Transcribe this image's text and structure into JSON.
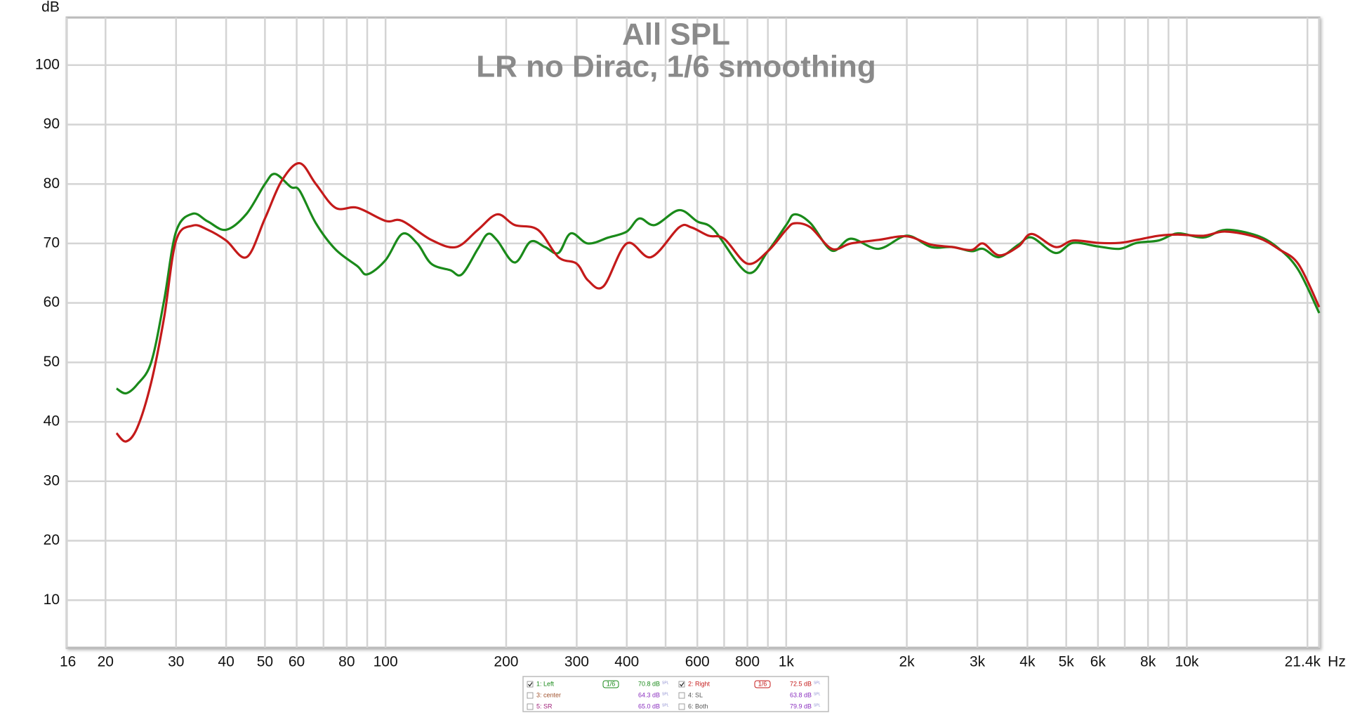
{
  "chart_data": {
    "type": "line",
    "title": "All SPL",
    "subtitle": "LR no Dirac, 1/6 smoothing",
    "y_axis_label": "dB",
    "x_axis_label": "Hz",
    "x_scale": "log",
    "grid": true,
    "xlim": [
      16,
      21400
    ],
    "ylim": [
      2,
      108
    ],
    "yticks": [
      10,
      20,
      30,
      40,
      50,
      60,
      70,
      80,
      90,
      100
    ],
    "xticks": [
      16,
      20,
      30,
      40,
      50,
      60,
      80,
      100,
      200,
      300,
      400,
      600,
      800,
      {
        "value": 1000,
        "label": "1k"
      },
      {
        "value": 2000,
        "label": "2k"
      },
      {
        "value": 3000,
        "label": "3k"
      },
      {
        "value": 4000,
        "label": "4k"
      },
      {
        "value": 5000,
        "label": "5k"
      },
      {
        "value": 6000,
        "label": "6k"
      },
      {
        "value": 8000,
        "label": "8k"
      },
      {
        "value": 10000,
        "label": "10k"
      },
      {
        "value": 21400,
        "label": "21.4k"
      }
    ],
    "x_minor_ticks": [
      70,
      90,
      500,
      700,
      900,
      7000,
      9000,
      20000
    ],
    "series": [
      {
        "name": "1: Left",
        "color": "#1a8a1a",
        "x": [
          21.3,
          22.5,
          24,
          26,
          28,
          30,
          33,
          36,
          40,
          45,
          50,
          53,
          58,
          61,
          67,
          75,
          85,
          90,
          100,
          110,
          120,
          130,
          145,
          155,
          170,
          180,
          190,
          210,
          230,
          250,
          270,
          290,
          320,
          360,
          400,
          430,
          470,
          540,
          600,
          660,
          800,
          900,
          1000,
          1050,
          1150,
          1300,
          1450,
          1700,
          2000,
          2300,
          2600,
          2900,
          3100,
          3400,
          3800,
          4100,
          4700,
          5200,
          6000,
          6800,
          7500,
          8500,
          9500,
          11000,
          12500,
          15000,
          17000,
          19000,
          21400
        ],
        "values": [
          45.6,
          44.8,
          46.3,
          50,
          60.4,
          72,
          75,
          73.7,
          72.3,
          75,
          80,
          81.7,
          79.5,
          78.9,
          73.4,
          69,
          66.2,
          64.8,
          67.2,
          71.6,
          70,
          66.6,
          65.5,
          64.8,
          69.1,
          71.6,
          70.5,
          66.8,
          70.3,
          69.4,
          68.4,
          71.7,
          70,
          71,
          72,
          74.2,
          73.1,
          75.6,
          73.7,
          72.3,
          65.1,
          68.7,
          73.1,
          74.9,
          73.4,
          68.8,
          70.8,
          69.1,
          71.3,
          69.4,
          69.4,
          68.7,
          69.1,
          67.7,
          69.8,
          71,
          68.4,
          70.1,
          69.5,
          69.1,
          70.1,
          70.5,
          71.7,
          71,
          72.3,
          71.3,
          69.1,
          65.5,
          58.3
        ]
      },
      {
        "name": "2: Right",
        "color": "#c41a1a",
        "x": [
          21.3,
          22.5,
          24,
          26,
          28,
          30,
          33,
          36,
          40,
          45,
          50,
          55,
          61,
          67,
          75,
          85,
          100,
          110,
          130,
          150,
          170,
          190,
          210,
          240,
          270,
          300,
          320,
          350,
          400,
          460,
          540,
          580,
          640,
          700,
          800,
          900,
          1000,
          1050,
          1150,
          1300,
          1450,
          1700,
          2000,
          2300,
          2600,
          2900,
          3100,
          3400,
          3800,
          4100,
          4700,
          5200,
          6000,
          6800,
          7500,
          8500,
          9500,
          11000,
          12500,
          15000,
          17000,
          19000,
          21400
        ],
        "values": [
          38.1,
          36.7,
          39,
          46.6,
          57.5,
          70.5,
          73,
          72.3,
          70.5,
          67.7,
          74.2,
          80.5,
          83.5,
          80,
          76,
          76,
          73.8,
          73.8,
          70.6,
          69.4,
          72.3,
          74.9,
          73.1,
          72.3,
          67.7,
          66.6,
          63.8,
          62.8,
          70,
          67.7,
          72.7,
          72.7,
          71.3,
          70.8,
          66.6,
          68.7,
          72.3,
          73.4,
          72.7,
          69.1,
          70,
          70.6,
          71.2,
          69.8,
          69.4,
          68.9,
          70,
          68,
          69.5,
          71.6,
          69.4,
          70.5,
          70.1,
          70.1,
          70.6,
          71.3,
          71.5,
          71.3,
          72,
          71,
          69,
          66.5,
          59.3
        ]
      }
    ],
    "legend": {
      "entries": [
        {
          "label": "1: Left",
          "checked": true,
          "smoothing": "1/6",
          "level": "70.8 dB",
          "unit": "SPL",
          "color": "#1a8a1a"
        },
        {
          "label": "2: Right",
          "checked": true,
          "smoothing": "1/6",
          "level": "72.5 dB",
          "unit": "SPL",
          "color": "#c41a1a"
        },
        {
          "label": "3: center",
          "checked": false,
          "level": "64.3 dB",
          "unit": "SPL",
          "color": "#a0522d"
        },
        {
          "label": "4: SL",
          "checked": false,
          "level": "63.8 dB",
          "unit": "SPL",
          "color": "#555555"
        },
        {
          "label": "5: SR",
          "checked": false,
          "level": "65.0 dB",
          "unit": "SPL",
          "color": "#a0227a"
        },
        {
          "label": "6: Both",
          "checked": false,
          "level": "79.9 dB",
          "unit": "SPL",
          "color": "#555555"
        }
      ]
    }
  }
}
